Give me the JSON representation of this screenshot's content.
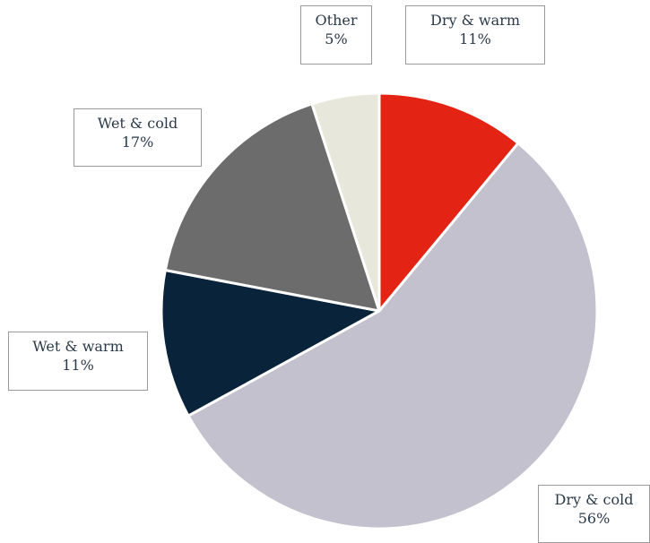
{
  "chart_data": {
    "type": "pie",
    "slices": [
      {
        "label": "Dry & warm",
        "value": 11,
        "value_label": "11%",
        "color": "#e32313"
      },
      {
        "label": "Dry & cold",
        "value": 56,
        "value_label": "56%",
        "color": "#c2c1cd"
      },
      {
        "label": "Wet & warm",
        "value": 11,
        "value_label": "11%",
        "color": "#08233a"
      },
      {
        "label": "Wet & cold",
        "value": 17,
        "value_label": "17%",
        "color": "#6c6c6c"
      },
      {
        "label": "Other",
        "value": 5,
        "value_label": "5%",
        "color": "#e8e7dc"
      }
    ],
    "start": "12 o'clock",
    "direction": "clockwise"
  }
}
